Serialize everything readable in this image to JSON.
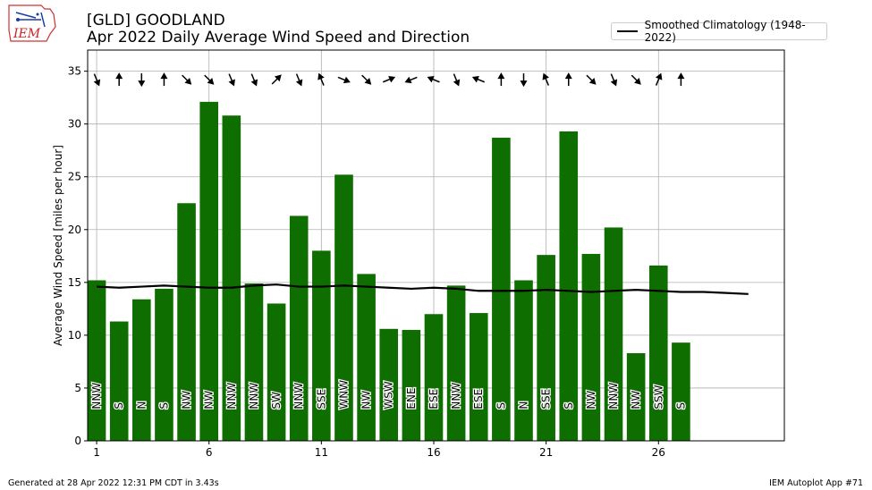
{
  "header": {
    "title": "[GLD] GOODLAND",
    "subtitle": "Apr 2022 Daily Average Wind Speed and Direction",
    "logo_text": "IEM"
  },
  "legend": {
    "label": "Smoothed Climatology (1948-2022)"
  },
  "footer": {
    "left": "Generated at 28 Apr 2022 12:31 PM CDT in 3.43s",
    "right": "IEM Autoplot App #71"
  },
  "colors": {
    "bar": "#0e6e00",
    "clim": "#000000",
    "grid": "#b0b0b0",
    "arrow": "#000000"
  },
  "chart_data": {
    "type": "bar",
    "ylabel": "Average Wind Speed [miles per hour]",
    "xlabel": "",
    "ylim": [
      0,
      37
    ],
    "xlim": [
      0.6,
      31.6
    ],
    "yticks": [
      0,
      5,
      10,
      15,
      20,
      25,
      30,
      35
    ],
    "xticks": [
      1,
      6,
      11,
      16,
      21,
      26
    ],
    "grid": true,
    "legend_position": "top-right",
    "days": [
      1,
      2,
      3,
      4,
      5,
      6,
      7,
      8,
      9,
      10,
      11,
      12,
      13,
      14,
      15,
      16,
      17,
      18,
      19,
      20,
      21,
      22,
      23,
      24,
      25,
      26,
      27
    ],
    "values": [
      15.2,
      11.3,
      13.4,
      14.4,
      22.5,
      32.1,
      30.8,
      14.9,
      13.0,
      21.3,
      18.0,
      25.2,
      15.8,
      10.6,
      10.5,
      12.0,
      14.7,
      12.1,
      28.7,
      15.2,
      17.6,
      29.3,
      17.7,
      20.2,
      8.3,
      16.6,
      9.3
    ],
    "directions": [
      "NNW",
      "S",
      "N",
      "S",
      "NW",
      "NW",
      "NNW",
      "NNW",
      "SW",
      "NNW",
      "SSE",
      "WNW",
      "NW",
      "WSW",
      "ENE",
      "ESE",
      "NNW",
      "ESE",
      "S",
      "N",
      "SSE",
      "S",
      "NW",
      "NNW",
      "NW",
      "SSW",
      "S"
    ],
    "direction_arrows_row_y": 34.2,
    "climatology": {
      "name": "Smoothed Climatology (1948-2022)",
      "x": [
        1,
        2,
        3,
        4,
        5,
        6,
        7,
        8,
        9,
        10,
        11,
        12,
        13,
        14,
        15,
        16,
        17,
        18,
        19,
        20,
        21,
        22,
        23,
        24,
        25,
        26,
        27,
        28,
        29,
        30
      ],
      "y": [
        14.6,
        14.5,
        14.6,
        14.7,
        14.6,
        14.5,
        14.5,
        14.7,
        14.8,
        14.6,
        14.6,
        14.7,
        14.6,
        14.5,
        14.4,
        14.5,
        14.4,
        14.2,
        14.2,
        14.2,
        14.3,
        14.2,
        14.1,
        14.2,
        14.3,
        14.2,
        14.1,
        14.1,
        14.0,
        13.9
      ]
    }
  }
}
